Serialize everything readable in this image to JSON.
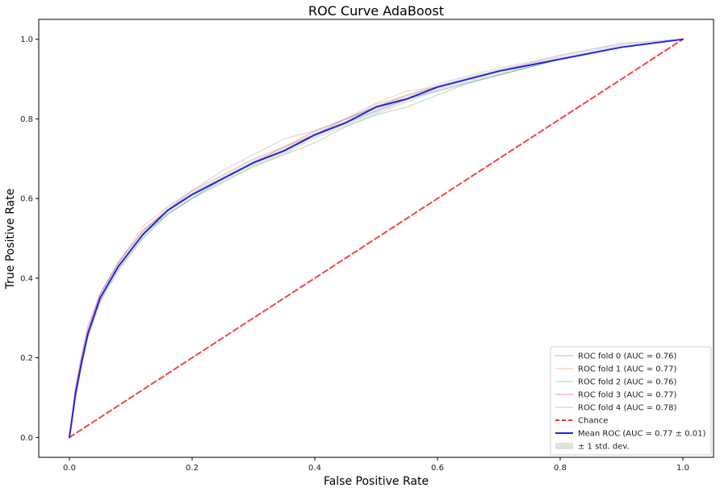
{
  "chart_data": {
    "type": "line",
    "title": "ROC Curve AdaBoost",
    "xlabel": "False Positive Rate",
    "ylabel": "True Positive Rate",
    "xlim": [
      -0.05,
      1.05
    ],
    "ylim": [
      -0.05,
      1.05
    ],
    "xticks": [
      0.0,
      0.2,
      0.4,
      0.6,
      0.8,
      1.0
    ],
    "yticks": [
      0.0,
      0.2,
      0.4,
      0.6,
      0.8,
      1.0
    ],
    "xtick_labels": [
      "0.0",
      "0.2",
      "0.4",
      "0.6",
      "0.8",
      "1.0"
    ],
    "ytick_labels": [
      "0.0",
      "0.2",
      "0.4",
      "0.6",
      "0.8",
      "1.0"
    ],
    "grid": false,
    "legend_position": "bottom-right",
    "series": [
      {
        "name": "ROC fold 0 (AUC = 0.76)",
        "color": "#1f77b4",
        "style": "thin",
        "x": [
          0,
          0.01,
          0.02,
          0.03,
          0.05,
          0.08,
          0.12,
          0.16,
          0.2,
          0.25,
          0.3,
          0.35,
          0.4,
          0.45,
          0.5,
          0.55,
          0.6,
          0.65,
          0.7,
          0.8,
          0.9,
          1.0
        ],
        "y": [
          0,
          0.1,
          0.18,
          0.25,
          0.34,
          0.42,
          0.5,
          0.56,
          0.6,
          0.65,
          0.69,
          0.72,
          0.76,
          0.79,
          0.82,
          0.85,
          0.87,
          0.89,
          0.91,
          0.95,
          0.98,
          1.0
        ]
      },
      {
        "name": "ROC fold 1 (AUC = 0.77)",
        "color": "#ff7f0e",
        "style": "thin",
        "x": [
          0,
          0.01,
          0.02,
          0.03,
          0.05,
          0.08,
          0.12,
          0.16,
          0.2,
          0.25,
          0.3,
          0.35,
          0.4,
          0.45,
          0.5,
          0.55,
          0.6,
          0.65,
          0.7,
          0.8,
          0.9,
          1.0
        ],
        "y": [
          0,
          0.12,
          0.2,
          0.27,
          0.36,
          0.44,
          0.53,
          0.58,
          0.62,
          0.66,
          0.7,
          0.73,
          0.77,
          0.8,
          0.84,
          0.87,
          0.88,
          0.9,
          0.92,
          0.95,
          0.98,
          1.0
        ]
      },
      {
        "name": "ROC fold 2 (AUC = 0.76)",
        "color": "#2ca02c",
        "style": "thin",
        "x": [
          0,
          0.01,
          0.02,
          0.03,
          0.05,
          0.08,
          0.12,
          0.16,
          0.2,
          0.25,
          0.3,
          0.35,
          0.4,
          0.45,
          0.5,
          0.55,
          0.6,
          0.65,
          0.7,
          0.8,
          0.9,
          1.0
        ],
        "y": [
          0,
          0.11,
          0.19,
          0.26,
          0.35,
          0.43,
          0.51,
          0.56,
          0.6,
          0.64,
          0.68,
          0.71,
          0.74,
          0.78,
          0.81,
          0.83,
          0.86,
          0.89,
          0.91,
          0.95,
          0.98,
          1.0
        ]
      },
      {
        "name": "ROC fold 3 (AUC = 0.77)",
        "color": "#d62728",
        "style": "thin",
        "x": [
          0,
          0.01,
          0.02,
          0.03,
          0.05,
          0.08,
          0.12,
          0.16,
          0.2,
          0.25,
          0.3,
          0.35,
          0.4,
          0.45,
          0.5,
          0.55,
          0.6,
          0.65,
          0.7,
          0.8,
          0.9,
          1.0
        ],
        "y": [
          0,
          0.13,
          0.21,
          0.28,
          0.36,
          0.44,
          0.52,
          0.57,
          0.61,
          0.65,
          0.69,
          0.73,
          0.76,
          0.8,
          0.83,
          0.86,
          0.88,
          0.9,
          0.92,
          0.95,
          0.98,
          1.0
        ]
      },
      {
        "name": "ROC fold 4 (AUC = 0.78)",
        "color": "#9467bd",
        "style": "thin",
        "x": [
          0,
          0.01,
          0.02,
          0.03,
          0.05,
          0.08,
          0.12,
          0.16,
          0.2,
          0.25,
          0.3,
          0.35,
          0.4,
          0.45,
          0.5,
          0.55,
          0.6,
          0.65,
          0.7,
          0.8,
          0.9,
          1.0
        ],
        "y": [
          0,
          0.12,
          0.2,
          0.27,
          0.36,
          0.44,
          0.52,
          0.57,
          0.62,
          0.67,
          0.71,
          0.75,
          0.77,
          0.8,
          0.83,
          0.85,
          0.88,
          0.9,
          0.92,
          0.96,
          0.99,
          1.0
        ]
      },
      {
        "name": "Chance",
        "color": "#ee3333",
        "style": "dashed",
        "x": [
          0,
          1
        ],
        "y": [
          0,
          1
        ]
      },
      {
        "name": "Mean ROC (AUC = 0.77 ± 0.01)",
        "color": "#2222dd",
        "style": "bold",
        "x": [
          0,
          0.01,
          0.02,
          0.03,
          0.05,
          0.08,
          0.12,
          0.16,
          0.2,
          0.25,
          0.3,
          0.35,
          0.4,
          0.45,
          0.5,
          0.55,
          0.6,
          0.65,
          0.7,
          0.8,
          0.9,
          1.0
        ],
        "y": [
          0,
          0.11,
          0.19,
          0.26,
          0.35,
          0.43,
          0.51,
          0.57,
          0.61,
          0.65,
          0.69,
          0.72,
          0.76,
          0.79,
          0.83,
          0.85,
          0.88,
          0.9,
          0.92,
          0.95,
          0.98,
          1.0
        ]
      }
    ],
    "std_band": {
      "name": "± 1 std. dev.",
      "color": "#cccccc",
      "x": [
        0,
        0.01,
        0.02,
        0.03,
        0.05,
        0.08,
        0.12,
        0.16,
        0.2,
        0.25,
        0.3,
        0.35,
        0.4,
        0.45,
        0.5,
        0.55,
        0.6,
        0.65,
        0.7,
        0.8,
        0.9,
        1.0
      ],
      "lower": [
        0,
        0.1,
        0.18,
        0.25,
        0.34,
        0.42,
        0.5,
        0.56,
        0.6,
        0.64,
        0.68,
        0.71,
        0.75,
        0.78,
        0.81,
        0.84,
        0.87,
        0.89,
        0.91,
        0.95,
        0.98,
        1.0
      ],
      "upper": [
        0,
        0.12,
        0.2,
        0.27,
        0.36,
        0.44,
        0.52,
        0.58,
        0.62,
        0.66,
        0.7,
        0.73,
        0.77,
        0.8,
        0.84,
        0.86,
        0.89,
        0.91,
        0.93,
        0.96,
        0.99,
        1.0
      ]
    }
  }
}
